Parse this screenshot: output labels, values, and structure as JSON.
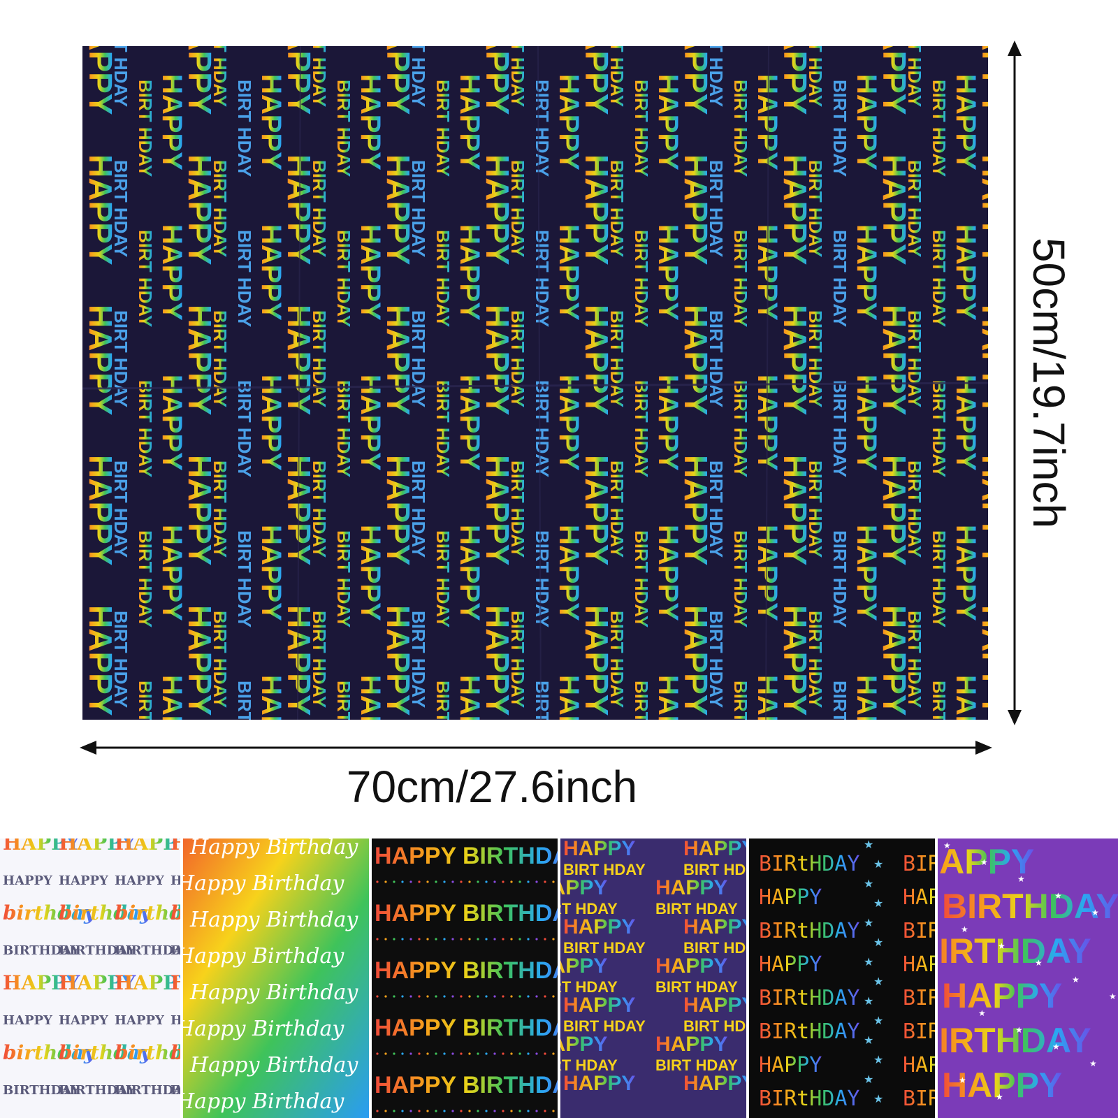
{
  "main_sheet": {
    "background": "#1b1738",
    "pattern_words": [
      "HAPPY",
      "BIRT HDAY"
    ],
    "rainbow": [
      "#f04a3a",
      "#f7a21b",
      "#f7e21b",
      "#3fc35a",
      "#2aa8f2",
      "#5a5fe8",
      "#8a4be0"
    ]
  },
  "dimensions": {
    "width_label": "70cm/27.6inch",
    "height_label": "50cm/19.7inch"
  },
  "swatches": [
    {
      "style": "white-rainbow-script",
      "background": "#f6f6fb",
      "lines": [
        "HAPPY",
        "HAPPY",
        "birthday",
        "BIRTHDAY"
      ]
    },
    {
      "style": "gradient-script",
      "background": "rainbow-gradient",
      "lines": [
        "Happy Birthday",
        "Happy Birthday",
        "Happy Birthday"
      ]
    },
    {
      "style": "black-block",
      "background": "#0d0d0d",
      "lines": [
        "HAPPY BIRTHDAY",
        "HAPPY BIRTHDAY",
        "HAPPY BIRTHDAY",
        "HAPPY BIRTHDAY",
        "HAPPY BIRTHDAY"
      ]
    },
    {
      "style": "purple-bold",
      "background": "#3a2c6e",
      "lines": [
        "HAPPY",
        "BIRT HDAY",
        "HAPPY",
        "BIRT HDAY"
      ]
    },
    {
      "style": "black-stars",
      "background": "#0b0b0b",
      "lines": [
        "BIRtHDAY",
        "HAPPY",
        "BIRtHDAY",
        "HAPPY",
        "BIRtHDAY"
      ]
    },
    {
      "style": "violet-block",
      "background": "#7b3bb8",
      "lines": [
        "HAPPY",
        "BIRTHDAY",
        "BIRTHDAY",
        "HAPPY",
        "BIRTHDAY"
      ]
    }
  ]
}
